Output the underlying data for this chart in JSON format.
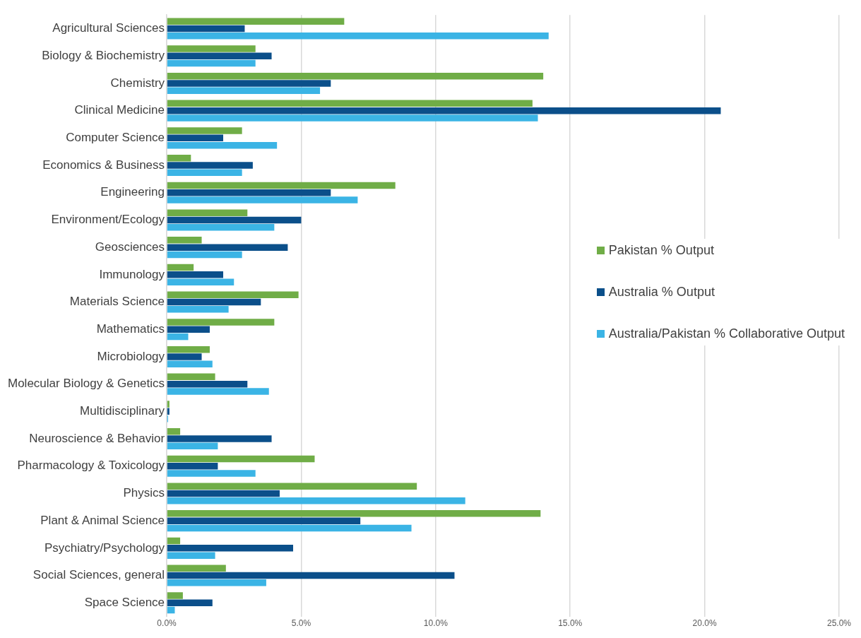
{
  "chart_data": {
    "type": "bar",
    "orientation": "horizontal",
    "categories": [
      "Agricultural Sciences",
      "Biology & Biochemistry",
      "Chemistry",
      "Clinical Medicine",
      "Computer Science",
      "Economics & Business",
      "Engineering",
      "Environment/Ecology",
      "Geosciences",
      "Immunology",
      "Materials Science",
      "Mathematics",
      "Microbiology",
      "Molecular Biology & Genetics",
      "Multidisciplinary",
      "Neuroscience & Behavior",
      "Pharmacology & Toxicology",
      "Physics",
      "Plant & Animal Science",
      "Psychiatry/Psychology",
      "Social Sciences, general",
      "Space Science"
    ],
    "series": [
      {
        "name": "Pakistan % Output",
        "color": "#70ad47",
        "values": [
          6.6,
          3.3,
          14.0,
          13.6,
          2.8,
          0.9,
          8.5,
          3.0,
          1.3,
          1.0,
          4.9,
          4.0,
          1.6,
          1.8,
          0.1,
          0.5,
          5.5,
          9.3,
          13.9,
          0.5,
          2.2,
          0.6
        ]
      },
      {
        "name": "Australia % Output",
        "color": "#0b4f8a",
        "values": [
          2.9,
          3.9,
          6.1,
          20.6,
          2.1,
          3.2,
          6.1,
          5.0,
          4.5,
          2.1,
          3.5,
          1.6,
          1.3,
          3.0,
          0.1,
          3.9,
          1.9,
          4.2,
          7.2,
          4.7,
          10.7,
          1.7
        ]
      },
      {
        "name": "Australia/Pakistan % Collaborative Output",
        "color": "#3bb4e5",
        "values": [
          14.2,
          3.3,
          5.7,
          13.8,
          4.1,
          2.8,
          7.1,
          4.0,
          2.8,
          2.5,
          2.3,
          0.8,
          1.7,
          3.8,
          0.05,
          1.9,
          3.3,
          11.1,
          9.1,
          1.8,
          3.7,
          0.3
        ]
      }
    ],
    "xlim": [
      0,
      25
    ],
    "xticks": [
      {
        "value": 0,
        "label": "0.0%"
      },
      {
        "value": 5,
        "label": "5.0%"
      },
      {
        "value": 10,
        "label": "10.0%"
      },
      {
        "value": 15,
        "label": "15.0%"
      },
      {
        "value": 20,
        "label": "20.0%"
      },
      {
        "value": 25,
        "label": "25.0%"
      }
    ],
    "grid": "x",
    "legend": "right"
  }
}
